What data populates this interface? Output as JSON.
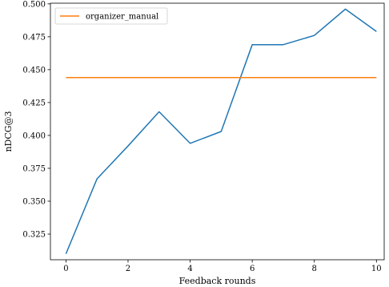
{
  "chart_data": {
    "type": "line",
    "title": "",
    "xlabel": "Feedback rounds",
    "ylabel": "nDCG@3",
    "xlim": [
      -0.5,
      10.25
    ],
    "ylim": [
      0.3055,
      0.5005
    ],
    "xticks": [
      0,
      2,
      4,
      6,
      8,
      10
    ],
    "xtick_labels": [
      "0",
      "2",
      "4",
      "6",
      "8",
      "10"
    ],
    "yticks": [
      0.325,
      0.35,
      0.375,
      0.4,
      0.425,
      0.45,
      0.475,
      0.5
    ],
    "ytick_labels": [
      "0.325",
      "0.350",
      "0.375",
      "0.400",
      "0.425",
      "0.450",
      "0.475",
      "0.500"
    ],
    "grid": false,
    "legend": {
      "position": "top-left"
    },
    "series": [
      {
        "name": "",
        "color": "#1f77b4",
        "x": [
          0,
          1,
          2,
          3,
          4,
          5,
          6,
          7,
          8,
          9,
          10
        ],
        "y": [
          0.31,
          0.367,
          0.392,
          0.418,
          0.394,
          0.403,
          0.469,
          0.469,
          0.476,
          0.496,
          0.479
        ]
      },
      {
        "name": "organizer_manual",
        "color": "#ff7f0e",
        "x": [
          0,
          10
        ],
        "y": [
          0.444,
          0.444
        ]
      }
    ]
  }
}
